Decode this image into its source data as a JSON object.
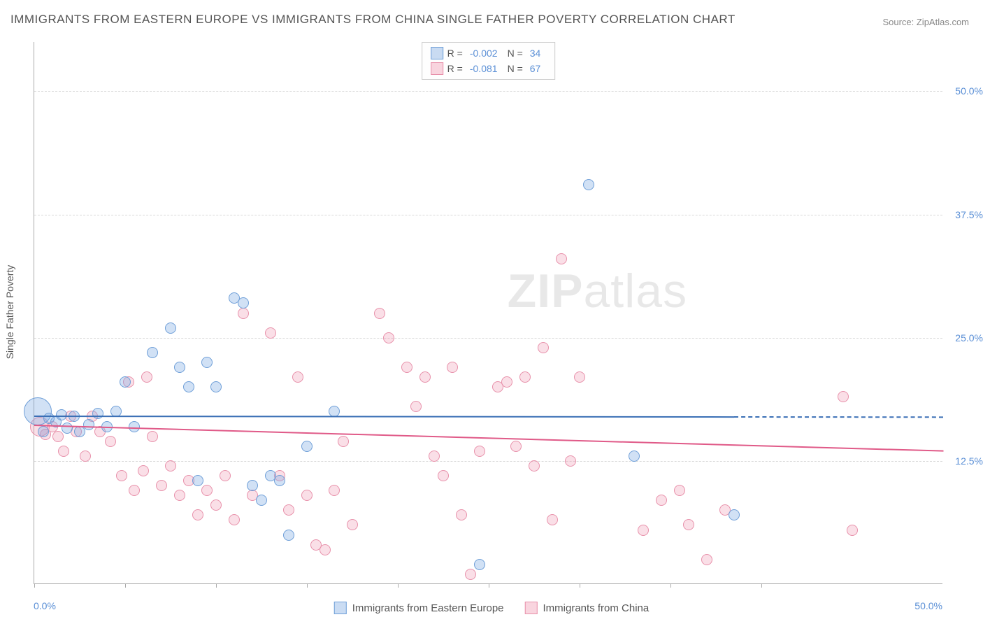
{
  "title": "IMMIGRANTS FROM EASTERN EUROPE VS IMMIGRANTS FROM CHINA SINGLE FATHER POVERTY CORRELATION CHART",
  "source": "Source: ZipAtlas.com",
  "watermark_bold": "ZIP",
  "watermark_rest": "atlas",
  "y_axis_label": "Single Father Poverty",
  "axes": {
    "x_min": 0,
    "x_max": 50,
    "x_min_label": "0.0%",
    "x_max_label": "50.0%",
    "y_min": 0,
    "y_max": 55,
    "y_ticks": [
      12.5,
      25.0,
      37.5,
      50.0
    ],
    "y_tick_labels": [
      "12.5%",
      "25.0%",
      "37.5%",
      "50.0%"
    ],
    "x_ticks": [
      0,
      5,
      10,
      15,
      20,
      25,
      30,
      35,
      40
    ]
  },
  "colors": {
    "blue_fill": "rgba(122,168,225,0.35)",
    "blue_stroke": "#6f9fd8",
    "blue_line": "#3a6fb5",
    "pink_fill": "rgba(240,150,175,0.3)",
    "pink_stroke": "#e891ab",
    "pink_line": "#e05a88",
    "grid": "#d8d8d8",
    "text": "#555555",
    "value_text": "#5a8fd6"
  },
  "legend": {
    "series": [
      {
        "label_r": "R =",
        "r": "-0.002",
        "label_n": "N =",
        "n": "34",
        "color": "blue"
      },
      {
        "label_r": "R =",
        "r": "-0.081",
        "label_n": "N =",
        "n": "67",
        "color": "pink"
      }
    ]
  },
  "bottom_legend": [
    {
      "label": "Immigrants from Eastern Europe",
      "color": "blue"
    },
    {
      "label": "Immigrants from China",
      "color": "pink"
    }
  ],
  "trends": {
    "blue": {
      "y_start": 17.1,
      "y_end": 17.0,
      "x_solid_end": 38.5
    },
    "pink": {
      "y_start": 16.2,
      "y_end": 13.6,
      "x_solid_end": 50
    }
  },
  "series_blue": [
    {
      "x": 0.2,
      "y": 17.5,
      "r": 20
    },
    {
      "x": 0.5,
      "y": 15.5,
      "r": 8
    },
    {
      "x": 0.8,
      "y": 16.8,
      "r": 8
    },
    {
      "x": 1.2,
      "y": 16.5,
      "r": 8
    },
    {
      "x": 1.5,
      "y": 17.2,
      "r": 8
    },
    {
      "x": 1.8,
      "y": 15.8,
      "r": 8
    },
    {
      "x": 2.2,
      "y": 17.0,
      "r": 8
    },
    {
      "x": 2.5,
      "y": 15.5,
      "r": 8
    },
    {
      "x": 3.0,
      "y": 16.2,
      "r": 8
    },
    {
      "x": 3.5,
      "y": 17.3,
      "r": 8
    },
    {
      "x": 4.0,
      "y": 16.0,
      "r": 8
    },
    {
      "x": 4.5,
      "y": 17.5,
      "r": 8
    },
    {
      "x": 5.0,
      "y": 20.5,
      "r": 8
    },
    {
      "x": 5.5,
      "y": 16.0,
      "r": 8
    },
    {
      "x": 6.5,
      "y": 23.5,
      "r": 8
    },
    {
      "x": 7.5,
      "y": 26.0,
      "r": 8
    },
    {
      "x": 8.0,
      "y": 22.0,
      "r": 8
    },
    {
      "x": 8.5,
      "y": 20.0,
      "r": 8
    },
    {
      "x": 9.0,
      "y": 10.5,
      "r": 8
    },
    {
      "x": 9.5,
      "y": 22.5,
      "r": 8
    },
    {
      "x": 10.0,
      "y": 20.0,
      "r": 8
    },
    {
      "x": 11.0,
      "y": 29.0,
      "r": 8
    },
    {
      "x": 11.5,
      "y": 28.5,
      "r": 8
    },
    {
      "x": 12.0,
      "y": 10.0,
      "r": 8
    },
    {
      "x": 12.5,
      "y": 8.5,
      "r": 8
    },
    {
      "x": 13.0,
      "y": 11.0,
      "r": 8
    },
    {
      "x": 13.5,
      "y": 10.5,
      "r": 8
    },
    {
      "x": 14.0,
      "y": 5.0,
      "r": 8
    },
    {
      "x": 15.0,
      "y": 14.0,
      "r": 8
    },
    {
      "x": 16.5,
      "y": 17.5,
      "r": 8
    },
    {
      "x": 24.5,
      "y": 2.0,
      "r": 8
    },
    {
      "x": 30.5,
      "y": 40.5,
      "r": 8
    },
    {
      "x": 33.0,
      "y": 13.0,
      "r": 8
    },
    {
      "x": 38.5,
      "y": 7.0,
      "r": 8
    }
  ],
  "series_pink": [
    {
      "x": 0.3,
      "y": 16.0,
      "r": 14
    },
    {
      "x": 0.6,
      "y": 15.2,
      "r": 8
    },
    {
      "x": 1.0,
      "y": 16.0,
      "r": 8
    },
    {
      "x": 1.3,
      "y": 15.0,
      "r": 8
    },
    {
      "x": 1.6,
      "y": 13.5,
      "r": 8
    },
    {
      "x": 2.0,
      "y": 17.0,
      "r": 8
    },
    {
      "x": 2.3,
      "y": 15.5,
      "r": 8
    },
    {
      "x": 2.8,
      "y": 13.0,
      "r": 8
    },
    {
      "x": 3.2,
      "y": 17.0,
      "r": 8
    },
    {
      "x": 3.6,
      "y": 15.5,
      "r": 8
    },
    {
      "x": 4.2,
      "y": 14.5,
      "r": 8
    },
    {
      "x": 4.8,
      "y": 11.0,
      "r": 8
    },
    {
      "x": 5.2,
      "y": 20.5,
      "r": 8
    },
    {
      "x": 5.5,
      "y": 9.5,
      "r": 8
    },
    {
      "x": 6.0,
      "y": 11.5,
      "r": 8
    },
    {
      "x": 6.2,
      "y": 21.0,
      "r": 8
    },
    {
      "x": 6.5,
      "y": 15.0,
      "r": 8
    },
    {
      "x": 7.0,
      "y": 10.0,
      "r": 8
    },
    {
      "x": 7.5,
      "y": 12.0,
      "r": 8
    },
    {
      "x": 8.0,
      "y": 9.0,
      "r": 8
    },
    {
      "x": 8.5,
      "y": 10.5,
      "r": 8
    },
    {
      "x": 9.0,
      "y": 7.0,
      "r": 8
    },
    {
      "x": 9.5,
      "y": 9.5,
      "r": 8
    },
    {
      "x": 10.0,
      "y": 8.0,
      "r": 8
    },
    {
      "x": 10.5,
      "y": 11.0,
      "r": 8
    },
    {
      "x": 11.0,
      "y": 6.5,
      "r": 8
    },
    {
      "x": 11.5,
      "y": 27.5,
      "r": 8
    },
    {
      "x": 12.0,
      "y": 9.0,
      "r": 8
    },
    {
      "x": 13.0,
      "y": 25.5,
      "r": 8
    },
    {
      "x": 13.5,
      "y": 11.0,
      "r": 8
    },
    {
      "x": 14.0,
      "y": 7.5,
      "r": 8
    },
    {
      "x": 14.5,
      "y": 21.0,
      "r": 8
    },
    {
      "x": 15.0,
      "y": 9.0,
      "r": 8
    },
    {
      "x": 15.5,
      "y": 4.0,
      "r": 8
    },
    {
      "x": 16.0,
      "y": 3.5,
      "r": 8
    },
    {
      "x": 16.5,
      "y": 9.5,
      "r": 8
    },
    {
      "x": 17.0,
      "y": 14.5,
      "r": 8
    },
    {
      "x": 17.5,
      "y": 6.0,
      "r": 8
    },
    {
      "x": 19.0,
      "y": 27.5,
      "r": 8
    },
    {
      "x": 19.5,
      "y": 25.0,
      "r": 8
    },
    {
      "x": 20.5,
      "y": 22.0,
      "r": 8
    },
    {
      "x": 21.0,
      "y": 18.0,
      "r": 8
    },
    {
      "x": 21.5,
      "y": 21.0,
      "r": 8
    },
    {
      "x": 22.0,
      "y": 13.0,
      "r": 8
    },
    {
      "x": 22.5,
      "y": 11.0,
      "r": 8
    },
    {
      "x": 23.0,
      "y": 22.0,
      "r": 8
    },
    {
      "x": 23.5,
      "y": 7.0,
      "r": 8
    },
    {
      "x": 24.0,
      "y": 1.0,
      "r": 8
    },
    {
      "x": 24.5,
      "y": 13.5,
      "r": 8
    },
    {
      "x": 25.5,
      "y": 20.0,
      "r": 8
    },
    {
      "x": 26.0,
      "y": 20.5,
      "r": 8
    },
    {
      "x": 26.5,
      "y": 14.0,
      "r": 8
    },
    {
      "x": 27.0,
      "y": 21.0,
      "r": 8
    },
    {
      "x": 27.5,
      "y": 12.0,
      "r": 8
    },
    {
      "x": 28.0,
      "y": 24.0,
      "r": 8
    },
    {
      "x": 28.5,
      "y": 6.5,
      "r": 8
    },
    {
      "x": 29.0,
      "y": 33.0,
      "r": 8
    },
    {
      "x": 29.5,
      "y": 12.5,
      "r": 8
    },
    {
      "x": 30.0,
      "y": 21.0,
      "r": 8
    },
    {
      "x": 33.5,
      "y": 5.5,
      "r": 8
    },
    {
      "x": 34.5,
      "y": 8.5,
      "r": 8
    },
    {
      "x": 35.5,
      "y": 9.5,
      "r": 8
    },
    {
      "x": 36.0,
      "y": 6.0,
      "r": 8
    },
    {
      "x": 37.0,
      "y": 2.5,
      "r": 8
    },
    {
      "x": 38.0,
      "y": 7.5,
      "r": 8
    },
    {
      "x": 44.5,
      "y": 19.0,
      "r": 8
    },
    {
      "x": 45.0,
      "y": 5.5,
      "r": 8
    }
  ]
}
